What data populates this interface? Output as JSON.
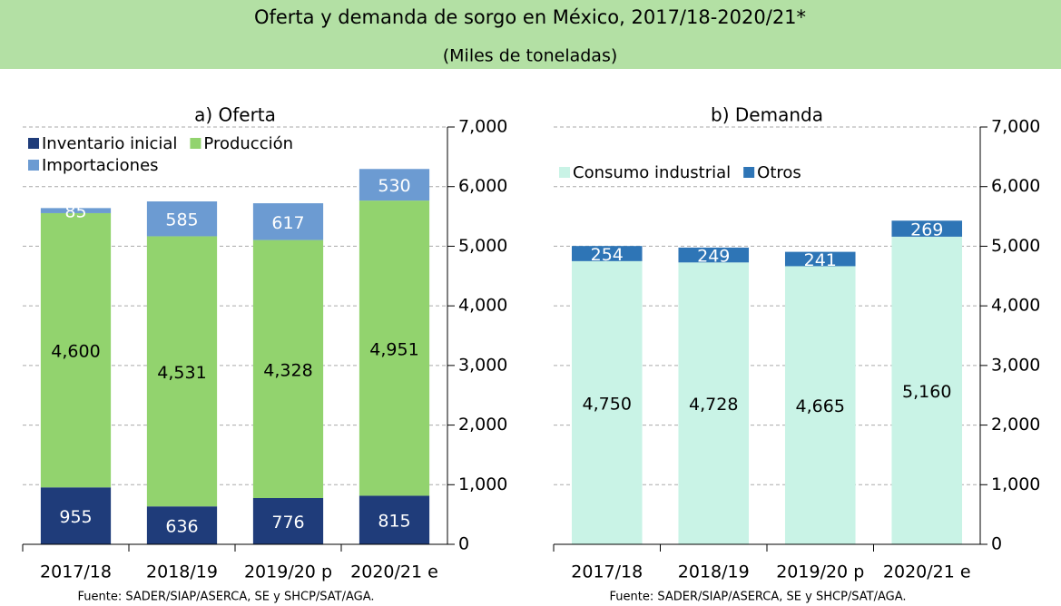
{
  "header": {
    "title": "Oferta y demanda de sorgo en México, 2017/18-2020/21*",
    "subtitle": "(Miles de toneladas)"
  },
  "chart_data": [
    {
      "type": "stacked_bar",
      "title": "a) Oferta",
      "source": "Fuente: SADER/SIAP/ASERCA, SE y SHCP/SAT/AGA.",
      "categories": [
        "2017/18",
        "2018/19",
        "2019/20 p",
        "2020/21 e"
      ],
      "series": [
        {
          "name": "Inventario inicial",
          "color": "#1f3c7a",
          "values": [
            955,
            636,
            776,
            815
          ],
          "value_labels": [
            "955",
            "636",
            "776",
            "815"
          ]
        },
        {
          "name": "Producción",
          "color": "#92d36e",
          "values": [
            4600,
            4531,
            4328,
            4951
          ],
          "value_labels": [
            "4,600",
            "4,531",
            "4,328",
            "4,951"
          ]
        },
        {
          "name": "Importaciones",
          "color": "#6c9bd2",
          "values": [
            85,
            585,
            617,
            530
          ],
          "value_labels": [
            "85",
            "585",
            "617",
            "530"
          ]
        }
      ],
      "ylim": [
        0,
        7000
      ],
      "yticks": [
        0,
        {
          "value": 1000,
          "label": "1,000"
        },
        {
          "value": 2000,
          "label": "2,000"
        },
        {
          "value": 3000,
          "label": "3,000"
        },
        {
          "value": 4000,
          "label": "4,000"
        },
        {
          "value": 5000,
          "label": "5,000"
        },
        {
          "value": 6000,
          "label": "6,000"
        },
        {
          "value": 7000,
          "label": "7,000"
        }
      ],
      "grid": true,
      "legend": "upper left"
    },
    {
      "type": "stacked_bar",
      "title": "b) Demanda",
      "source": "Fuente: SADER/SIAP/ASERCA, SE y SHCP/SAT/AGA.",
      "categories": [
        "2017/18",
        "2018/19",
        "2019/20 p",
        "2020/21 e"
      ],
      "series": [
        {
          "name": "Consumo industrial",
          "color": "#c9f3e6",
          "values": [
            4750,
            4728,
            4665,
            5160
          ],
          "value_labels": [
            "4,750",
            "4,728",
            "4,665",
            "5,160"
          ]
        },
        {
          "name": "Otros",
          "color": "#2e75b6",
          "values": [
            254,
            249,
            241,
            269
          ],
          "value_labels": [
            "254",
            "249",
            "241",
            "269"
          ]
        }
      ],
      "ylim": [
        0,
        7000
      ],
      "yticks": [
        0,
        {
          "value": 1000,
          "label": "1,000"
        },
        {
          "value": 2000,
          "label": "2,000"
        },
        {
          "value": 3000,
          "label": "3,000"
        },
        {
          "value": 4000,
          "label": "4,000"
        },
        {
          "value": 5000,
          "label": "5,000"
        },
        {
          "value": 6000,
          "label": "6,000"
        },
        {
          "value": 7000,
          "label": "7,000"
        }
      ],
      "grid": true,
      "legend": "upper left"
    }
  ]
}
